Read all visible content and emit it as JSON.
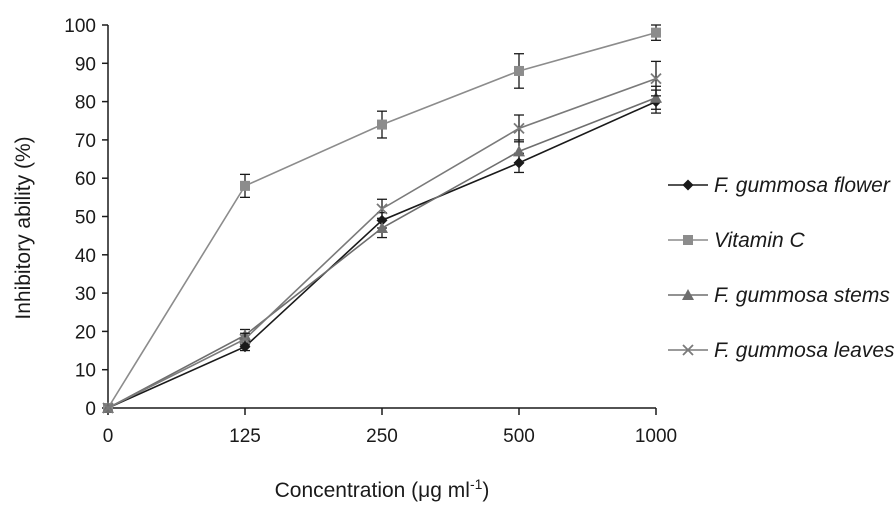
{
  "chart_data": {
    "type": "line",
    "categories": [
      "0",
      "125",
      "250",
      "500",
      "1000"
    ],
    "xlabel": "Concentration (μg ml",
    "xlabel_sup": "-1",
    "xlabel_end": ")",
    "ylabel": "Inhibitory ability (%)",
    "ylim": [
      0,
      100
    ],
    "yticks": [
      0,
      10,
      20,
      30,
      40,
      50,
      60,
      70,
      80,
      90,
      100
    ],
    "grid": false,
    "legend_position": "right",
    "series": [
      {
        "name": "F. gummosa flower",
        "marker": "diamond",
        "color": "#1a1a1a",
        "values": [
          0,
          16,
          49,
          64,
          80
        ],
        "errors": [
          0,
          1,
          2,
          2.5,
          3
        ]
      },
      {
        "name": "Vitamin C",
        "marker": "square",
        "color": "#8c8c8c",
        "values": [
          0,
          58,
          74,
          88,
          98
        ],
        "errors": [
          0,
          3,
          3.5,
          4.5,
          2
        ]
      },
      {
        "name": "F. gummosa stems",
        "marker": "triangle",
        "color": "#6e6e6e",
        "values": [
          0,
          19,
          47,
          67,
          81
        ],
        "errors": [
          0,
          1.5,
          2.5,
          3,
          3
        ]
      },
      {
        "name": "F. gummosa leaves",
        "marker": "x",
        "color": "#7a7a7a",
        "values": [
          0,
          18,
          52,
          73,
          86
        ],
        "errors": [
          0,
          1.5,
          2.5,
          3.5,
          4.5
        ]
      }
    ]
  }
}
